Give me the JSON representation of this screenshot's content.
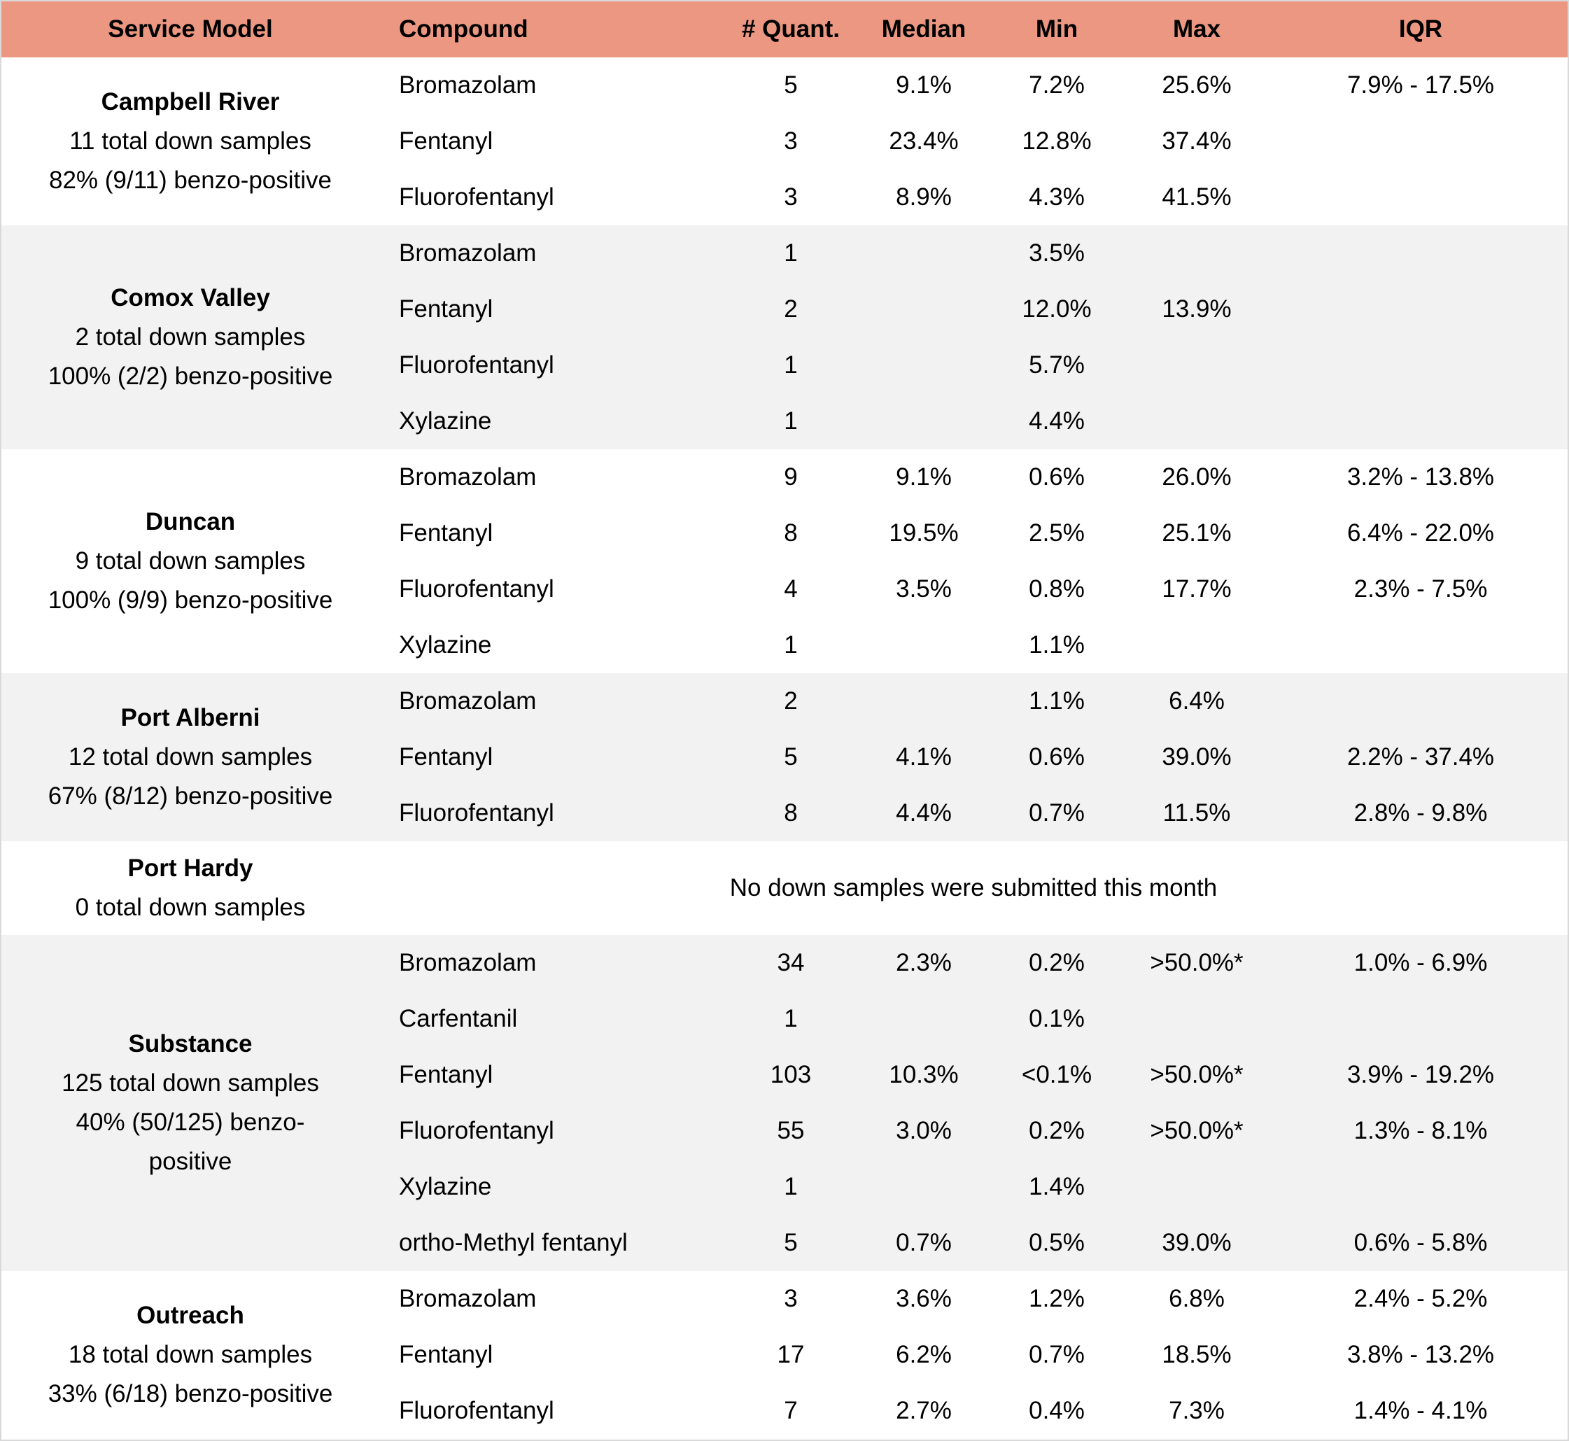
{
  "headers": {
    "service_model": "Service Model",
    "compound": "Compound",
    "quant": "# Quant.",
    "median": "Median",
    "min": "Min",
    "max": "Max",
    "iqr": "IQR"
  },
  "groups": [
    {
      "name": "Campbell River",
      "lines": [
        "11 total down samples",
        "82% (9/11) benzo-positive"
      ],
      "rows": [
        {
          "compound": "Bromazolam",
          "n": "5",
          "median": "9.1%",
          "min": "7.2%",
          "max": "25.6%",
          "iqr": "7.9% - 17.5%"
        },
        {
          "compound": "Fentanyl",
          "n": "3",
          "median": "23.4%",
          "min": "12.8%",
          "max": "37.4%",
          "iqr": ""
        },
        {
          "compound": "Fluorofentanyl",
          "n": "3",
          "median": "8.9%",
          "min": "4.3%",
          "max": "41.5%",
          "iqr": ""
        }
      ]
    },
    {
      "name": "Comox Valley",
      "lines": [
        "2 total down samples",
        "100% (2/2) benzo-positive"
      ],
      "rows": [
        {
          "compound": "Bromazolam",
          "n": "1",
          "median": "",
          "min": "3.5%",
          "max": "",
          "iqr": ""
        },
        {
          "compound": "Fentanyl",
          "n": "2",
          "median": "",
          "min": "12.0%",
          "max": "13.9%",
          "iqr": ""
        },
        {
          "compound": "Fluorofentanyl",
          "n": "1",
          "median": "",
          "min": "5.7%",
          "max": "",
          "iqr": ""
        },
        {
          "compound": "Xylazine",
          "n": "1",
          "median": "",
          "min": "4.4%",
          "max": "",
          "iqr": ""
        }
      ]
    },
    {
      "name": "Duncan",
      "lines": [
        "9 total down samples",
        "100% (9/9) benzo-positive"
      ],
      "rows": [
        {
          "compound": "Bromazolam",
          "n": "9",
          "median": "9.1%",
          "min": "0.6%",
          "max": "26.0%",
          "iqr": "3.2% - 13.8%"
        },
        {
          "compound": "Fentanyl",
          "n": "8",
          "median": "19.5%",
          "min": "2.5%",
          "max": "25.1%",
          "iqr": "6.4% - 22.0%"
        },
        {
          "compound": "Fluorofentanyl",
          "n": "4",
          "median": "3.5%",
          "min": "0.8%",
          "max": "17.7%",
          "iqr": "2.3% - 7.5%"
        },
        {
          "compound": "Xylazine",
          "n": "1",
          "median": "",
          "min": "1.1%",
          "max": "",
          "iqr": ""
        }
      ]
    },
    {
      "name": "Port Alberni",
      "lines": [
        "12 total down samples",
        "67% (8/12) benzo-positive"
      ],
      "rows": [
        {
          "compound": "Bromazolam",
          "n": "2",
          "median": "",
          "min": "1.1%",
          "max": "6.4%",
          "iqr": ""
        },
        {
          "compound": "Fentanyl",
          "n": "5",
          "median": "4.1%",
          "min": "0.6%",
          "max": "39.0%",
          "iqr": "2.2% - 37.4%"
        },
        {
          "compound": "Fluorofentanyl",
          "n": "8",
          "median": "4.4%",
          "min": "0.7%",
          "max": "11.5%",
          "iqr": "2.8% - 9.8%"
        }
      ]
    },
    {
      "name": "Port Hardy",
      "lines": [
        "0 total down samples"
      ],
      "no_data": "No down samples were submitted this month",
      "rows": []
    },
    {
      "name": "Substance",
      "lines": [
        "125 total down samples",
        "40% (50/125) benzo-",
        "positive"
      ],
      "rows": [
        {
          "compound": "Bromazolam",
          "n": "34",
          "median": "2.3%",
          "min": "0.2%",
          "max": ">50.0%*",
          "iqr": "1.0% - 6.9%"
        },
        {
          "compound": "Carfentanil",
          "n": "1",
          "median": "",
          "min": "0.1%",
          "max": "",
          "iqr": ""
        },
        {
          "compound": "Fentanyl",
          "n": "103",
          "median": "10.3%",
          "min": "<0.1%",
          "max": ">50.0%*",
          "iqr": "3.9% - 19.2%"
        },
        {
          "compound": "Fluorofentanyl",
          "n": "55",
          "median": "3.0%",
          "min": "0.2%",
          "max": ">50.0%*",
          "iqr": "1.3% - 8.1%"
        },
        {
          "compound": "Xylazine",
          "n": "1",
          "median": "",
          "min": "1.4%",
          "max": "",
          "iqr": ""
        },
        {
          "compound": "ortho-Methyl fentanyl",
          "n": "5",
          "median": "0.7%",
          "min": "0.5%",
          "max": "39.0%",
          "iqr": "0.6% - 5.8%"
        }
      ]
    },
    {
      "name": "Outreach",
      "lines": [
        "18 total down samples",
        "33% (6/18) benzo-positive"
      ],
      "rows": [
        {
          "compound": "Bromazolam",
          "n": "3",
          "median": "3.6%",
          "min": "1.2%",
          "max": "6.8%",
          "iqr": "2.4% - 5.2%"
        },
        {
          "compound": "Fentanyl",
          "n": "17",
          "median": "6.2%",
          "min": "0.7%",
          "max": "18.5%",
          "iqr": "3.8% - 13.2%"
        },
        {
          "compound": "Fluorofentanyl",
          "n": "7",
          "median": "2.7%",
          "min": "0.4%",
          "max": "7.3%",
          "iqr": "1.4% - 4.1%"
        }
      ]
    }
  ],
  "colors": {
    "header_bg": "#eb9782",
    "shade_bg": "#f2f2f2"
  }
}
